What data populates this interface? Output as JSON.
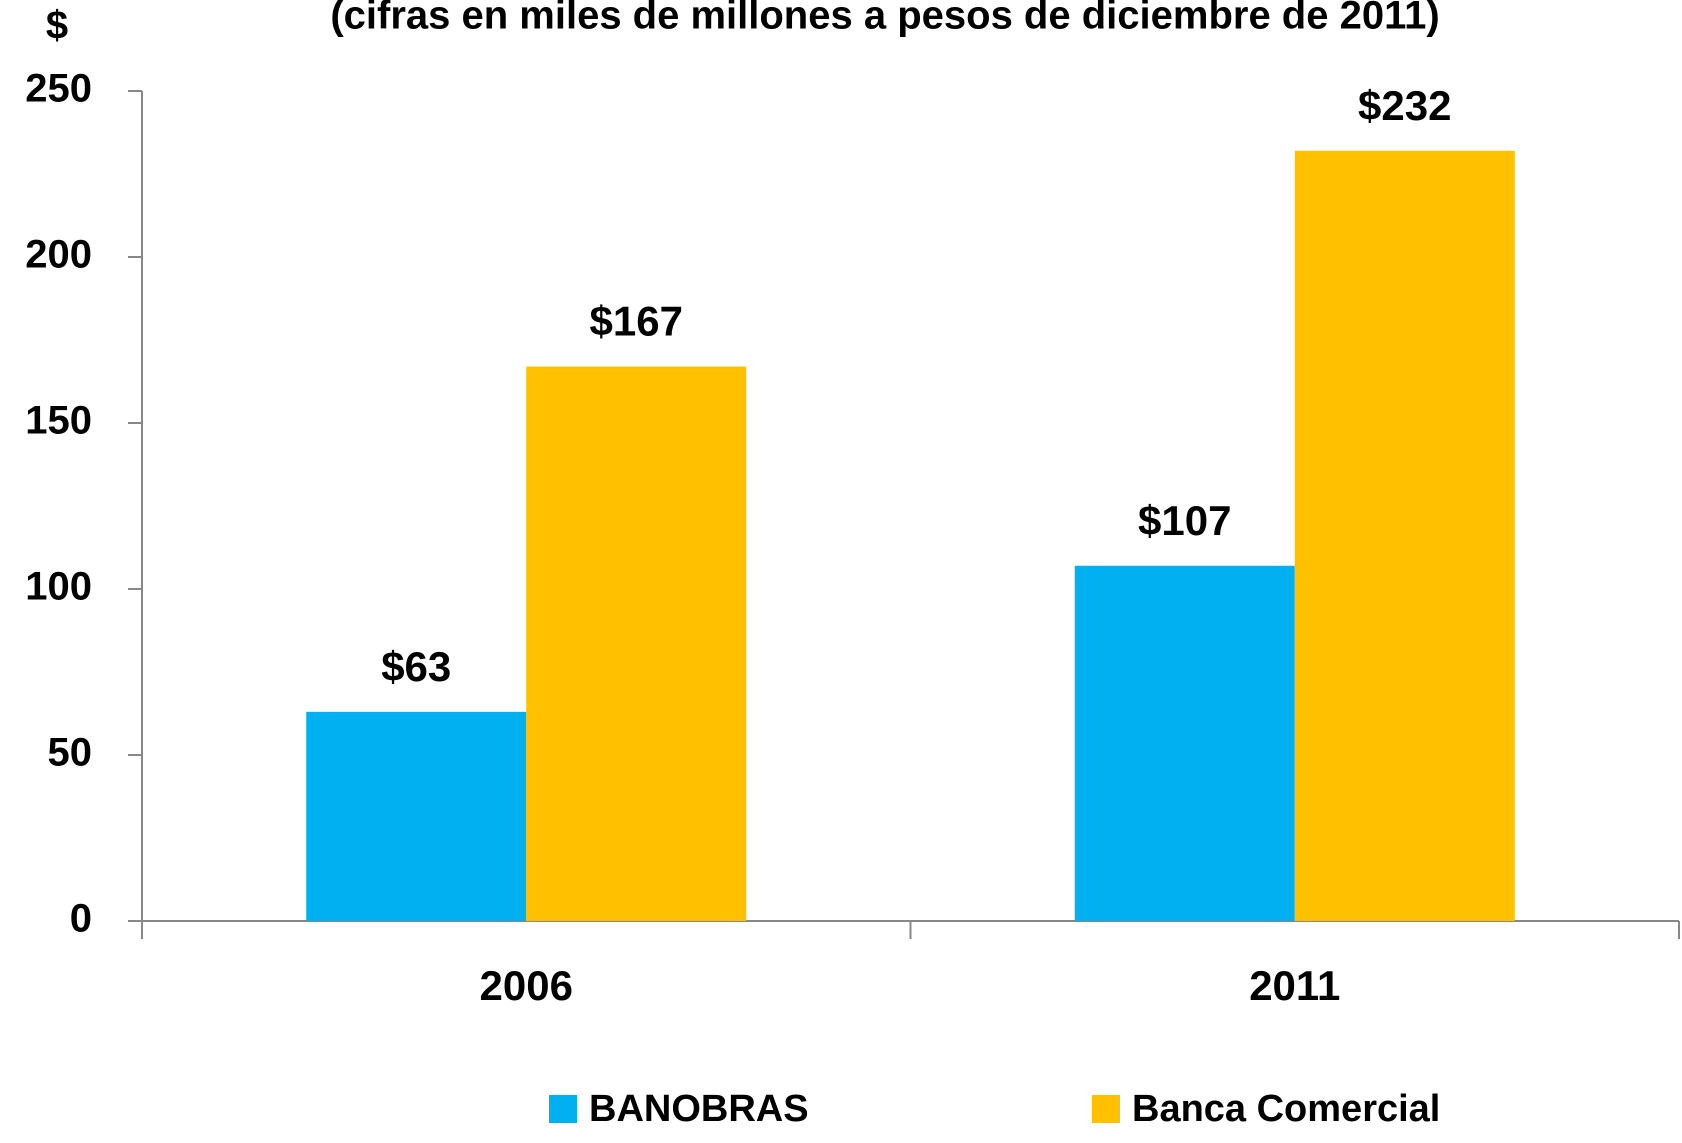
{
  "chart_data": {
    "type": "bar",
    "title": "(cifras en miles de millones a pesos de diciembre de 2011)",
    "y_label": "$",
    "categories": [
      "2006",
      "2011"
    ],
    "series": [
      {
        "name": "BANOBRAS",
        "color": "#00b0f0",
        "values": [
          63,
          107
        ],
        "value_labels": [
          "$63",
          "$107"
        ]
      },
      {
        "name": "Banca Comercial",
        "color": "#ffc000",
        "values": [
          167,
          232
        ],
        "value_labels": [
          "$167",
          "$232"
        ]
      }
    ],
    "ylim": [
      0,
      250
    ],
    "yticks": [
      0,
      50,
      100,
      150,
      200,
      250
    ],
    "grid": false,
    "legend": "bottom"
  }
}
